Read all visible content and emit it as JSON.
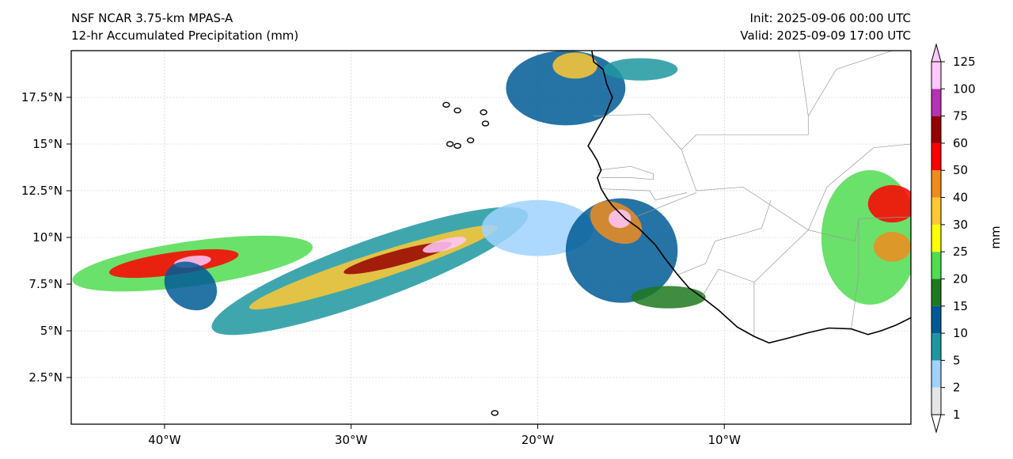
{
  "header": {
    "model": "NSF NCAR 3.75-km MPAS-A",
    "field": "12-hr Accumulated Precipitation (mm)",
    "init": "Init: 2025-09-06 00:00 UTC",
    "valid": "Valid: 2025-09-09 17:00 UTC"
  },
  "map": {
    "lon_range": [
      -45,
      0
    ],
    "lat_range": [
      0,
      20
    ],
    "x_ticks": [
      {
        "lon": -40,
        "label": "40°W"
      },
      {
        "lon": -30,
        "label": "30°W"
      },
      {
        "lon": -20,
        "label": "20°W"
      },
      {
        "lon": -10,
        "label": "10°W"
      }
    ],
    "y_ticks": [
      {
        "lat": 2.5,
        "label": "2.5°N"
      },
      {
        "lat": 5,
        "label": "5°N"
      },
      {
        "lat": 7.5,
        "label": "7.5°N"
      },
      {
        "lat": 10,
        "label": "10°N"
      },
      {
        "lat": 12.5,
        "label": "12.5°N"
      },
      {
        "lat": 15,
        "label": "15°N"
      },
      {
        "lat": 17.5,
        "label": "17.5°N"
      }
    ],
    "coastline": [
      [
        -17.1,
        20.0
      ],
      [
        -17.0,
        19.4
      ],
      [
        -16.5,
        19.0
      ],
      [
        -16.3,
        18.2
      ],
      [
        -16.0,
        17.5
      ],
      [
        -16.4,
        16.5
      ],
      [
        -16.8,
        15.8
      ],
      [
        -17.3,
        14.9
      ],
      [
        -17.1,
        14.6
      ],
      [
        -16.8,
        14.1
      ],
      [
        -16.6,
        13.6
      ],
      [
        -16.8,
        13.2
      ],
      [
        -16.6,
        12.6
      ],
      [
        -16.3,
        12.1
      ],
      [
        -16.0,
        11.7
      ],
      [
        -15.3,
        11.0
      ],
      [
        -14.6,
        10.5
      ],
      [
        -13.7,
        9.6
      ],
      [
        -13.2,
        8.9
      ],
      [
        -12.5,
        8.0
      ],
      [
        -11.9,
        7.3
      ],
      [
        -11.2,
        6.8
      ],
      [
        -10.3,
        6.1
      ],
      [
        -9.3,
        5.2
      ],
      [
        -8.4,
        4.7
      ],
      [
        -7.6,
        4.35
      ],
      [
        -6.6,
        4.6
      ],
      [
        -5.5,
        4.9
      ],
      [
        -4.4,
        5.15
      ],
      [
        -3.2,
        5.1
      ],
      [
        -2.3,
        4.8
      ],
      [
        -1.6,
        5.0
      ],
      [
        -0.8,
        5.3
      ],
      [
        0.0,
        5.7
      ]
    ],
    "islands": [
      [
        -24.9,
        17.1
      ],
      [
        -24.3,
        16.8
      ],
      [
        -22.9,
        16.7
      ],
      [
        -22.8,
        16.1
      ],
      [
        -23.6,
        15.2
      ],
      [
        -24.7,
        15.0
      ],
      [
        -24.3,
        14.9
      ],
      [
        -22.3,
        0.6
      ]
    ],
    "borders": [
      [
        [
          -17.0,
          16.5
        ],
        [
          -14.0,
          16.6
        ],
        [
          -12.3,
          14.7
        ],
        [
          -11.5,
          12.5
        ]
      ],
      [
        [
          -16.8,
          13.6
        ],
        [
          -15.0,
          13.8
        ],
        [
          -13.8,
          13.4
        ],
        [
          -13.8,
          13.1
        ],
        [
          -15.0,
          13.2
        ],
        [
          -16.6,
          13.2
        ]
      ],
      [
        [
          -16.6,
          12.6
        ],
        [
          -14.0,
          12.5
        ],
        [
          -13.7,
          12.0
        ],
        [
          -12.0,
          12.4
        ]
      ],
      [
        [
          -15.0,
          11.0
        ],
        [
          -13.0,
          11.8
        ],
        [
          -11.5,
          12.4
        ]
      ],
      [
        [
          -12.5,
          8.0
        ],
        [
          -11.0,
          8.6
        ],
        [
          -10.5,
          9.8
        ],
        [
          -9.0,
          10.2
        ],
        [
          -8.0,
          10.5
        ],
        [
          -7.5,
          12.0
        ]
      ],
      [
        [
          -11.2,
          6.8
        ],
        [
          -10.3,
          8.3
        ],
        [
          -8.4,
          7.6
        ],
        [
          -8.4,
          4.7
        ]
      ],
      [
        [
          -8.4,
          7.6
        ],
        [
          -5.5,
          10.4
        ],
        [
          -3.0,
          9.8
        ],
        [
          -2.8,
          11.0
        ],
        [
          0.0,
          11.1
        ]
      ],
      [
        [
          -2.8,
          11.0
        ],
        [
          -2.8,
          8.0
        ],
        [
          -3.2,
          5.1
        ]
      ],
      [
        [
          -5.5,
          10.4
        ],
        [
          -4.5,
          12.7
        ],
        [
          -2.0,
          14.8
        ],
        [
          0.0,
          15.0
        ]
      ],
      [
        [
          -12.3,
          14.7
        ],
        [
          -11.5,
          15.5
        ],
        [
          -5.5,
          15.5
        ],
        [
          -5.5,
          16.5
        ],
        [
          -6.0,
          20.0
        ]
      ],
      [
        [
          -11.5,
          12.5
        ],
        [
          -9.0,
          12.7
        ],
        [
          -5.5,
          10.4
        ]
      ],
      [
        [
          -5.5,
          16.5
        ],
        [
          -4.0,
          19.0
        ],
        [
          -1.0,
          20.0
        ]
      ]
    ],
    "precip_cells": [
      {
        "lon": -38.5,
        "lat": 8.6,
        "rx": 6.5,
        "ry": 1.2,
        "angle": 8,
        "v": 20
      },
      {
        "lon": -39.5,
        "lat": 8.6,
        "rx": 3.5,
        "ry": 0.6,
        "angle": 8,
        "v": 50
      },
      {
        "lon": -38.5,
        "lat": 8.7,
        "rx": 1.0,
        "ry": 0.3,
        "angle": 8,
        "v": 100
      },
      {
        "lon": -38.6,
        "lat": 7.4,
        "rx": 1.5,
        "ry": 1.2,
        "angle": -35,
        "v": 10
      },
      {
        "lon": -29.0,
        "lat": 8.2,
        "rx": 9.0,
        "ry": 1.6,
        "angle": 20,
        "v": 8
      },
      {
        "lon": -28.8,
        "lat": 8.4,
        "rx": 7.0,
        "ry": 0.7,
        "angle": 18,
        "v": 30
      },
      {
        "lon": -27.5,
        "lat": 8.9,
        "rx": 3.0,
        "ry": 0.4,
        "angle": 15,
        "v": 60
      },
      {
        "lon": -25.0,
        "lat": 9.6,
        "rx": 1.2,
        "ry": 0.3,
        "angle": 15,
        "v": 100
      },
      {
        "lon": -20.0,
        "lat": 10.5,
        "rx": 3.0,
        "ry": 1.5,
        "angle": 0,
        "v": 4
      },
      {
        "lon": -15.5,
        "lat": 9.3,
        "rx": 3.0,
        "ry": 2.8,
        "angle": 0,
        "v": 12
      },
      {
        "lon": -15.8,
        "lat": 10.8,
        "rx": 1.5,
        "ry": 1.0,
        "angle": -30,
        "v": 40
      },
      {
        "lon": -15.6,
        "lat": 11.0,
        "rx": 0.6,
        "ry": 0.5,
        "angle": 0,
        "v": 125
      },
      {
        "lon": -13.0,
        "lat": 6.8,
        "rx": 2.0,
        "ry": 0.6,
        "angle": 0,
        "v": 15
      },
      {
        "lon": -2.2,
        "lat": 10.0,
        "rx": 2.6,
        "ry": 3.6,
        "angle": 0,
        "v": 20
      },
      {
        "lon": -1.0,
        "lat": 11.8,
        "rx": 1.3,
        "ry": 1.0,
        "angle": 0,
        "v": 50
      },
      {
        "lon": -1.0,
        "lat": 9.5,
        "rx": 1.0,
        "ry": 0.8,
        "angle": 0,
        "v": 40
      },
      {
        "lon": -18.5,
        "lat": 18.0,
        "rx": 3.2,
        "ry": 2.0,
        "angle": 0,
        "v": 10
      },
      {
        "lon": -18.0,
        "lat": 19.2,
        "rx": 1.2,
        "ry": 0.7,
        "angle": 0,
        "v": 30
      },
      {
        "lon": -14.5,
        "lat": 19.0,
        "rx": 2.0,
        "ry": 0.6,
        "angle": 0,
        "v": 6
      }
    ]
  },
  "colorbar": {
    "unit": "mm",
    "levels": [
      1,
      2,
      5,
      10,
      15,
      20,
      25,
      30,
      40,
      50,
      60,
      75,
      100,
      125
    ],
    "colors": [
      "#e6e6e6",
      "#a0d2ff",
      "#1e96a0",
      "#005a96",
      "#1e781e",
      "#50dc50",
      "#ffff00",
      "#ffc832",
      "#f08c1e",
      "#ff0000",
      "#960000",
      "#b432b4",
      "#ffc8ff"
    ]
  }
}
